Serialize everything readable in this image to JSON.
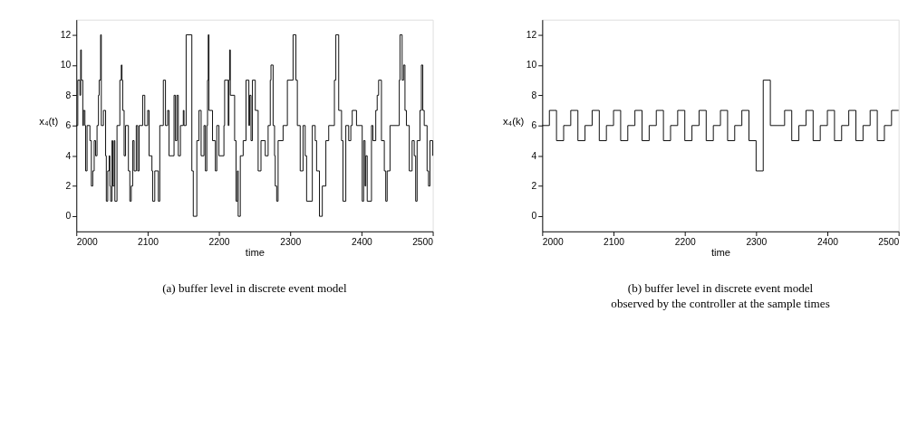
{
  "chart_data": [
    {
      "type": "step",
      "xlabel": "time",
      "ylabel": "x₄(t)",
      "xlim": [
        2000,
        2500
      ],
      "ylim": [
        -1,
        13
      ],
      "xticks": [
        2000,
        2100,
        2200,
        2300,
        2400,
        2500
      ],
      "yticks": [
        0,
        2,
        4,
        6,
        8,
        10,
        12
      ],
      "grid": false,
      "annotations": [
        "(a) buffer level in discrete event model"
      ],
      "series": [
        {
          "color": "#000000",
          "x": [
            2000,
            2002,
            2005,
            2006,
            2007,
            2009,
            2010,
            2012,
            2013,
            2015,
            2019,
            2021,
            2023,
            2025,
            2027,
            2029,
            2031,
            2032,
            2034,
            2035,
            2038,
            2041,
            2042,
            2044,
            2046,
            2047,
            2048,
            2050,
            2051,
            2053,
            2054,
            2057,
            2061,
            2063,
            2064,
            2065,
            2067,
            2069,
            2073,
            2075,
            2077,
            2079,
            2081,
            2084,
            2086,
            2088,
            2093,
            2096,
            2100,
            2102,
            2106,
            2107,
            2110,
            2115,
            2117,
            2122,
            2125,
            2128,
            2130,
            2137,
            2139,
            2141,
            2143,
            2146,
            2150,
            2151,
            2154,
            2162,
            2164,
            2169,
            2172,
            2175,
            2179,
            2181,
            2183,
            2184,
            2185,
            2186,
            2191,
            2195,
            2197,
            2200,
            2207,
            2208,
            2213,
            2214,
            2215,
            2216,
            2222,
            2224,
            2226,
            2227,
            2230,
            2234,
            2238,
            2242,
            2243,
            2245,
            2247,
            2251,
            2255,
            2259,
            2265,
            2269,
            2272,
            2273,
            2276,
            2278,
            2279,
            2281,
            2283,
            2290,
            2296,
            2304,
            2308,
            2310,
            2314,
            2318,
            2321,
            2323,
            2331,
            2335,
            2337,
            2341,
            2345,
            2350,
            2354,
            2362,
            2364,
            2368,
            2372,
            2374,
            2378,
            2382,
            2385,
            2387,
            2393,
            2401,
            2403,
            2405,
            2406,
            2408,
            2414,
            2416,
            2420,
            2422,
            2424,
            2428,
            2432,
            2434,
            2436,
            2440,
            2453,
            2454,
            2457,
            2459,
            2461,
            2463,
            2467,
            2471,
            2474,
            2476,
            2478,
            2482,
            2484,
            2486,
            2488,
            2492,
            2494,
            2496,
            2500
          ],
          "values": [
            6,
            9,
            8,
            11,
            9,
            6,
            7,
            6,
            3,
            6,
            5,
            2,
            3,
            5,
            4,
            6,
            8,
            9,
            12,
            6,
            7,
            4,
            1,
            3,
            4,
            2,
            1,
            5,
            2,
            5,
            1,
            6,
            9,
            10,
            9,
            7,
            4,
            6,
            3,
            1,
            2,
            5,
            3,
            6,
            3,
            6,
            8,
            6,
            7,
            4,
            3,
            1,
            3,
            1,
            6,
            9,
            6,
            7,
            4,
            8,
            5,
            8,
            4,
            6,
            7,
            6,
            12,
            3,
            0,
            5,
            7,
            4,
            6,
            3,
            6,
            9,
            12,
            7,
            5,
            3,
            6,
            4,
            6,
            9,
            6,
            9,
            11,
            8,
            5,
            1,
            3,
            0,
            4,
            5,
            9,
            6,
            8,
            5,
            9,
            7,
            3,
            5,
            4,
            6,
            9,
            10,
            6,
            4,
            2,
            1,
            5,
            6,
            9,
            12,
            9,
            6,
            3,
            6,
            4,
            1,
            6,
            5,
            3,
            0,
            2,
            5,
            6,
            9,
            12,
            7,
            5,
            1,
            6,
            5,
            6,
            7,
            6,
            1,
            5,
            2,
            4,
            1,
            6,
            5,
            7,
            8,
            9,
            5,
            3,
            1,
            3,
            6,
            9,
            12,
            9,
            10,
            7,
            6,
            3,
            5,
            4,
            1,
            5,
            7,
            10,
            7,
            6,
            3,
            2,
            5,
            4
          ]
        }
      ]
    },
    {
      "type": "step",
      "xlabel": "time",
      "ylabel": "x₄(k)",
      "xlim": [
        2000,
        2500
      ],
      "ylim": [
        -1,
        13
      ],
      "xticks": [
        2000,
        2100,
        2200,
        2300,
        2400,
        2500
      ],
      "yticks": [
        0,
        2,
        4,
        6,
        8,
        10,
        12
      ],
      "grid": false,
      "annotations": [
        "(b) buffer level in discrete event model observed by the controller at the sample times"
      ],
      "series": [
        {
          "color": "#000000",
          "x": [
            2000,
            2010,
            2020,
            2030,
            2040,
            2050,
            2060,
            2070,
            2080,
            2090,
            2100,
            2110,
            2120,
            2130,
            2140,
            2150,
            2160,
            2170,
            2180,
            2190,
            2200,
            2210,
            2220,
            2230,
            2240,
            2250,
            2260,
            2270,
            2280,
            2290,
            2300,
            2310,
            2320,
            2330,
            2340,
            2350,
            2360,
            2370,
            2380,
            2390,
            2400,
            2410,
            2420,
            2430,
            2440,
            2450,
            2460,
            2470,
            2480,
            2490,
            2500
          ],
          "values": [
            6,
            7,
            5,
            6,
            7,
            5,
            6,
            7,
            5,
            6,
            7,
            5,
            6,
            7,
            5,
            6,
            7,
            5,
            6,
            7,
            5,
            6,
            7,
            5,
            6,
            7,
            5,
            6,
            7,
            5,
            3,
            9,
            6,
            6,
            7,
            5,
            6,
            7,
            5,
            6,
            7,
            5,
            6,
            7,
            5,
            6,
            7,
            5,
            6,
            7,
            7
          ]
        }
      ]
    }
  ]
}
